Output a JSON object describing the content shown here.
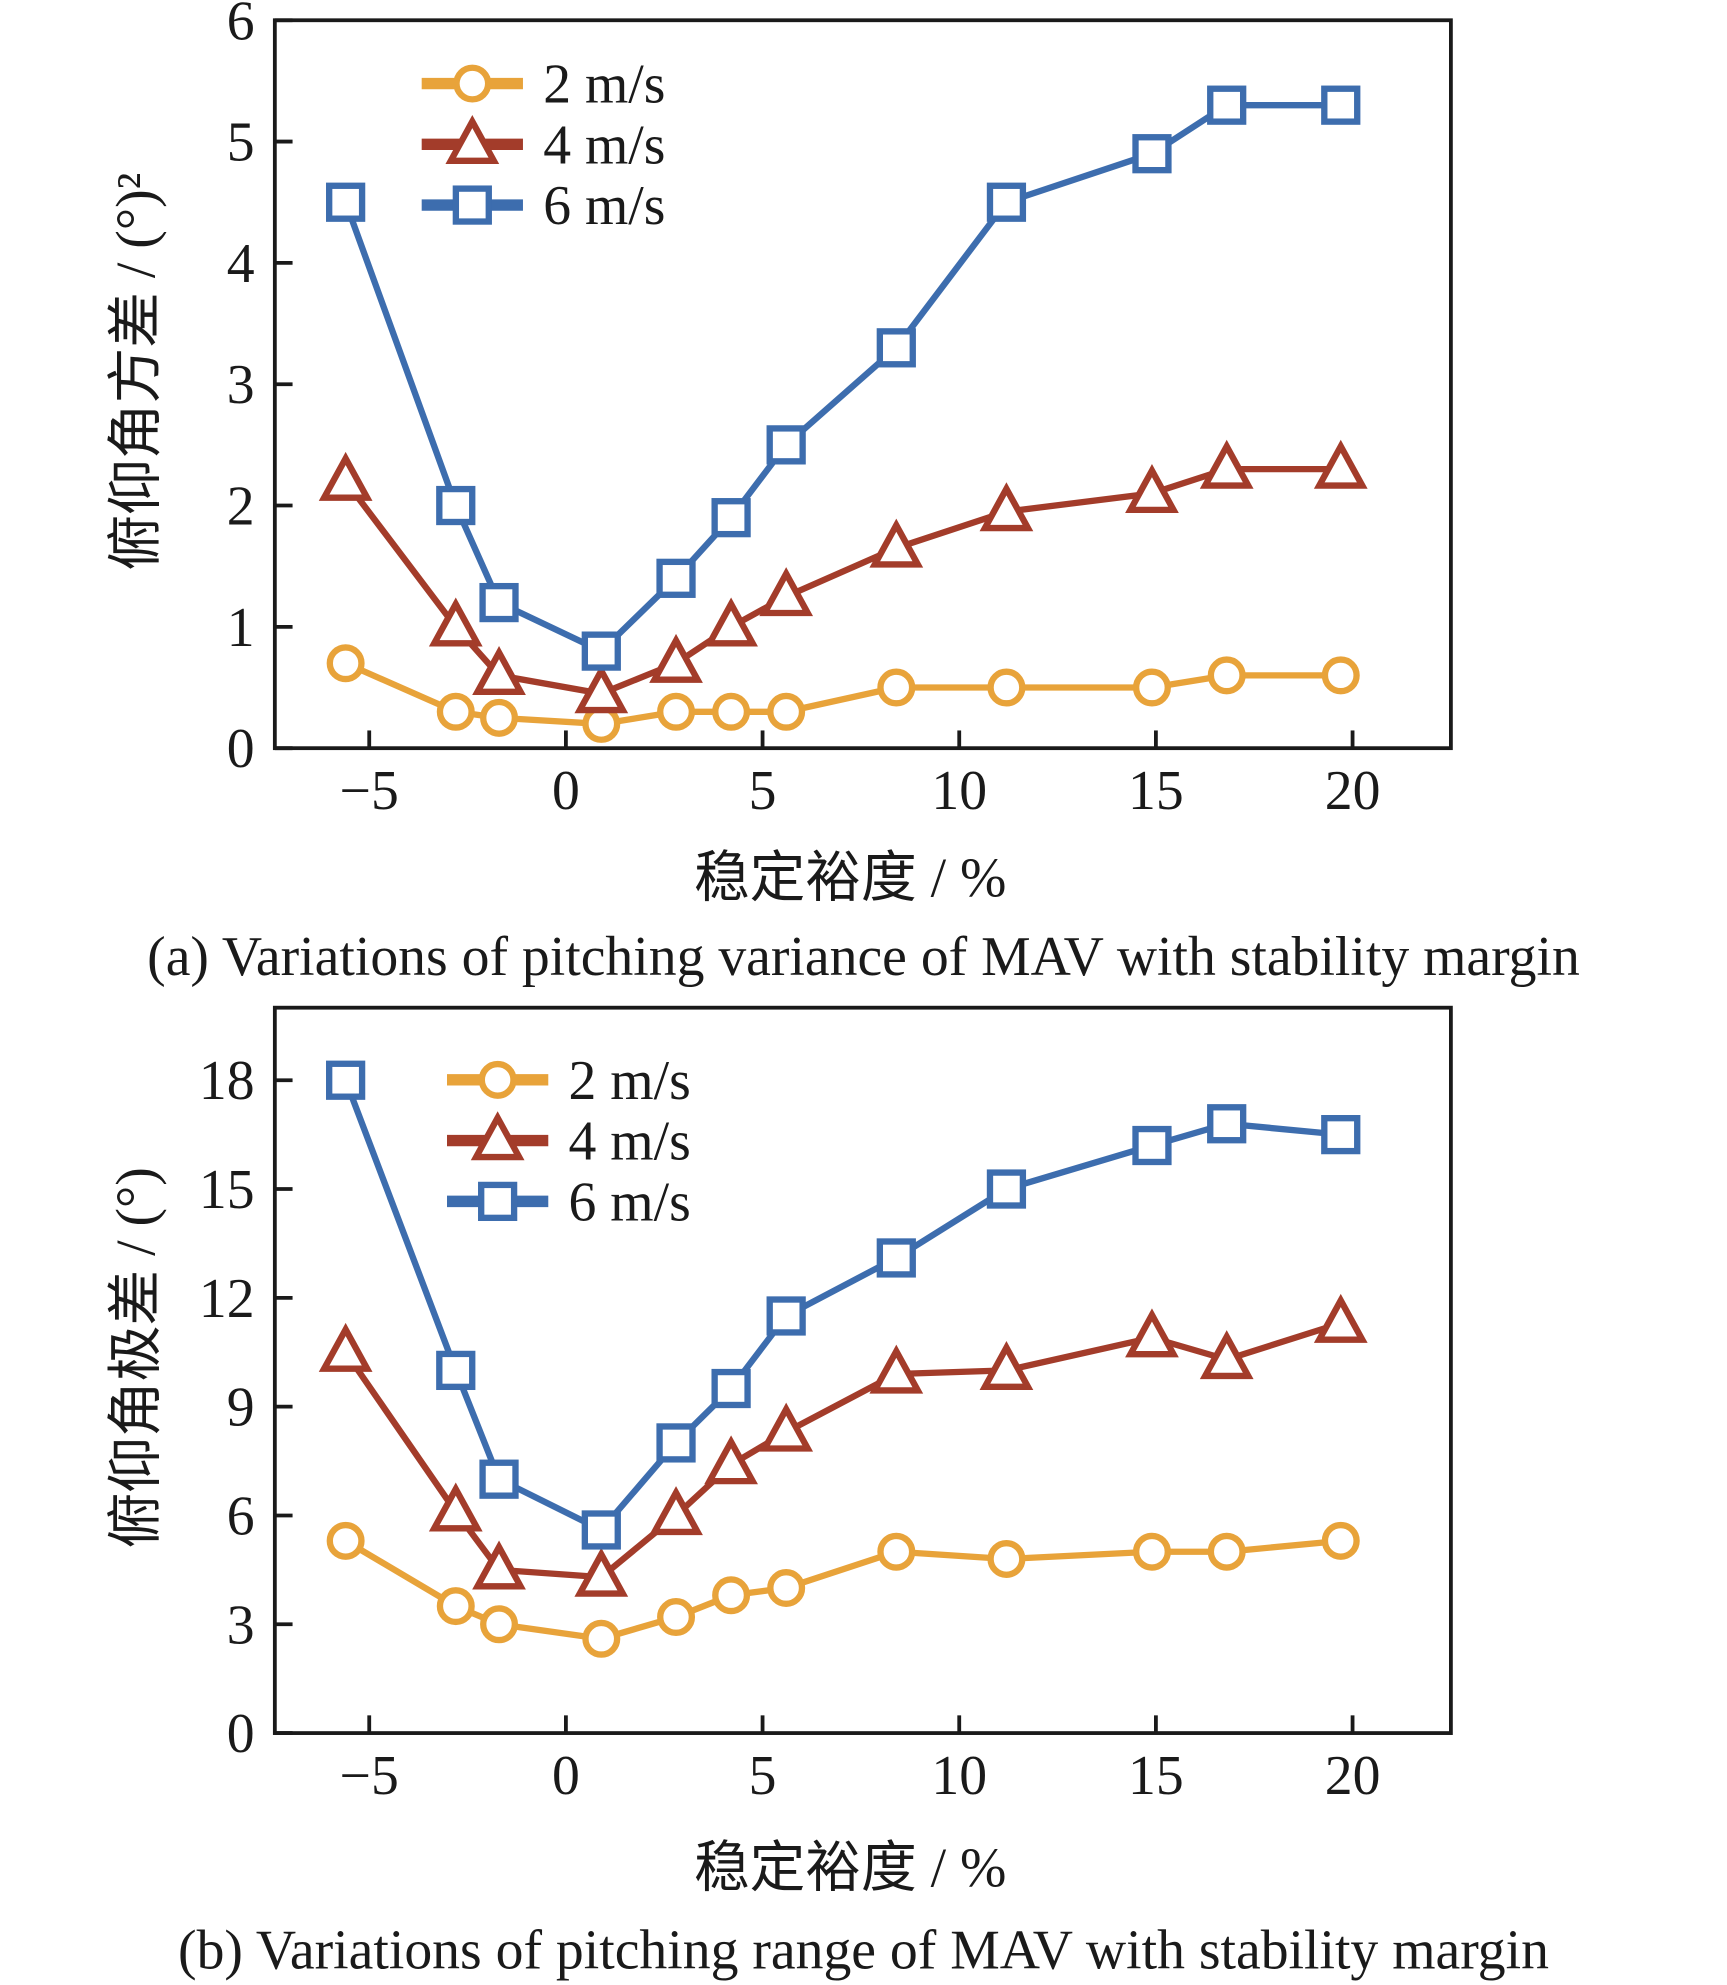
{
  "chart_data": [
    {
      "type": "line",
      "caption": "(a) Variations of pitching variance of MAV with stability margin",
      "xlabel": "稳定裕度 / %",
      "ylabel": "俯仰角方差 / (°)²",
      "ylabel_main": "俯仰角方差 / (",
      "ylabel_unit": "°)",
      "ylabel_sup": "2",
      "xlim": [
        -7.4,
        22.5
      ],
      "ylim": [
        0,
        6
      ],
      "xticks": [
        -5,
        0,
        5,
        10,
        15,
        20
      ],
      "xtick_labels": [
        "−5",
        "0",
        "5",
        "10",
        "15",
        "20"
      ],
      "yticks": [
        0,
        1,
        2,
        3,
        4,
        5,
        6
      ],
      "ytick_labels": [
        "0",
        "1",
        "2",
        "3",
        "4",
        "5",
        "6"
      ],
      "grid": false,
      "legend_position": "top-left",
      "x": [
        -5.6,
        -2.8,
        -1.7,
        0.9,
        2.8,
        4.2,
        5.6,
        8.4,
        11.2,
        14.9,
        16.8,
        19.7
      ],
      "series": [
        {
          "name": "2 m/s",
          "marker": "circle",
          "color": "#E8A33A",
          "values": [
            0.7,
            0.3,
            0.25,
            0.2,
            0.3,
            0.3,
            0.3,
            0.5,
            0.5,
            0.5,
            0.6,
            0.6
          ]
        },
        {
          "name": "4 m/s",
          "marker": "triangle",
          "color": "#A33C2A",
          "values": [
            2.2,
            1.0,
            0.6,
            0.45,
            0.7,
            1.0,
            1.25,
            1.65,
            1.95,
            2.1,
            2.3,
            2.3
          ]
        },
        {
          "name": "6 m/s",
          "marker": "square",
          "color": "#3D6DAE",
          "values": [
            4.5,
            2.0,
            1.2,
            0.8,
            1.4,
            1.9,
            2.5,
            3.3,
            4.5,
            4.9,
            5.3,
            5.3
          ]
        }
      ]
    },
    {
      "type": "line",
      "caption": "(b) Variations of pitching  range of MAV with stability margin",
      "xlabel": "稳定裕度 / %",
      "ylabel": "俯仰角极差 / (°)",
      "ylabel_main": "俯仰角极差 / (",
      "ylabel_unit": "°)",
      "ylabel_sup": "",
      "xlim": [
        -7.4,
        22.5
      ],
      "ylim": [
        0,
        20
      ],
      "xticks": [
        -5,
        0,
        5,
        10,
        15,
        20
      ],
      "xtick_labels": [
        "−5",
        "0",
        "5",
        "10",
        "15",
        "20"
      ],
      "yticks": [
        0,
        3,
        6,
        9,
        12,
        15,
        18
      ],
      "ytick_labels": [
        "0",
        "3",
        "6",
        "9",
        "12",
        "15",
        "18"
      ],
      "grid": false,
      "legend_position": "top-left",
      "x": [
        -5.6,
        -2.8,
        -1.7,
        0.9,
        2.8,
        4.2,
        5.6,
        8.4,
        11.2,
        14.9,
        16.8,
        19.7
      ],
      "series": [
        {
          "name": "2 m/s",
          "marker": "circle",
          "color": "#E8A33A",
          "values": [
            5.3,
            3.5,
            3.0,
            2.6,
            3.2,
            3.8,
            4.0,
            5.0,
            4.8,
            5.0,
            5.0,
            5.3
          ]
        },
        {
          "name": "4 m/s",
          "marker": "triangle",
          "color": "#A33C2A",
          "values": [
            10.5,
            6.1,
            4.5,
            4.3,
            6.0,
            7.4,
            8.3,
            9.9,
            10.0,
            10.9,
            10.3,
            11.3
          ]
        },
        {
          "name": "6 m/s",
          "marker": "square",
          "color": "#3D6DAE",
          "values": [
            18.0,
            10.0,
            7.0,
            5.6,
            8.0,
            9.5,
            11.5,
            13.1,
            15.0,
            16.2,
            16.8,
            16.5
          ]
        }
      ]
    }
  ]
}
